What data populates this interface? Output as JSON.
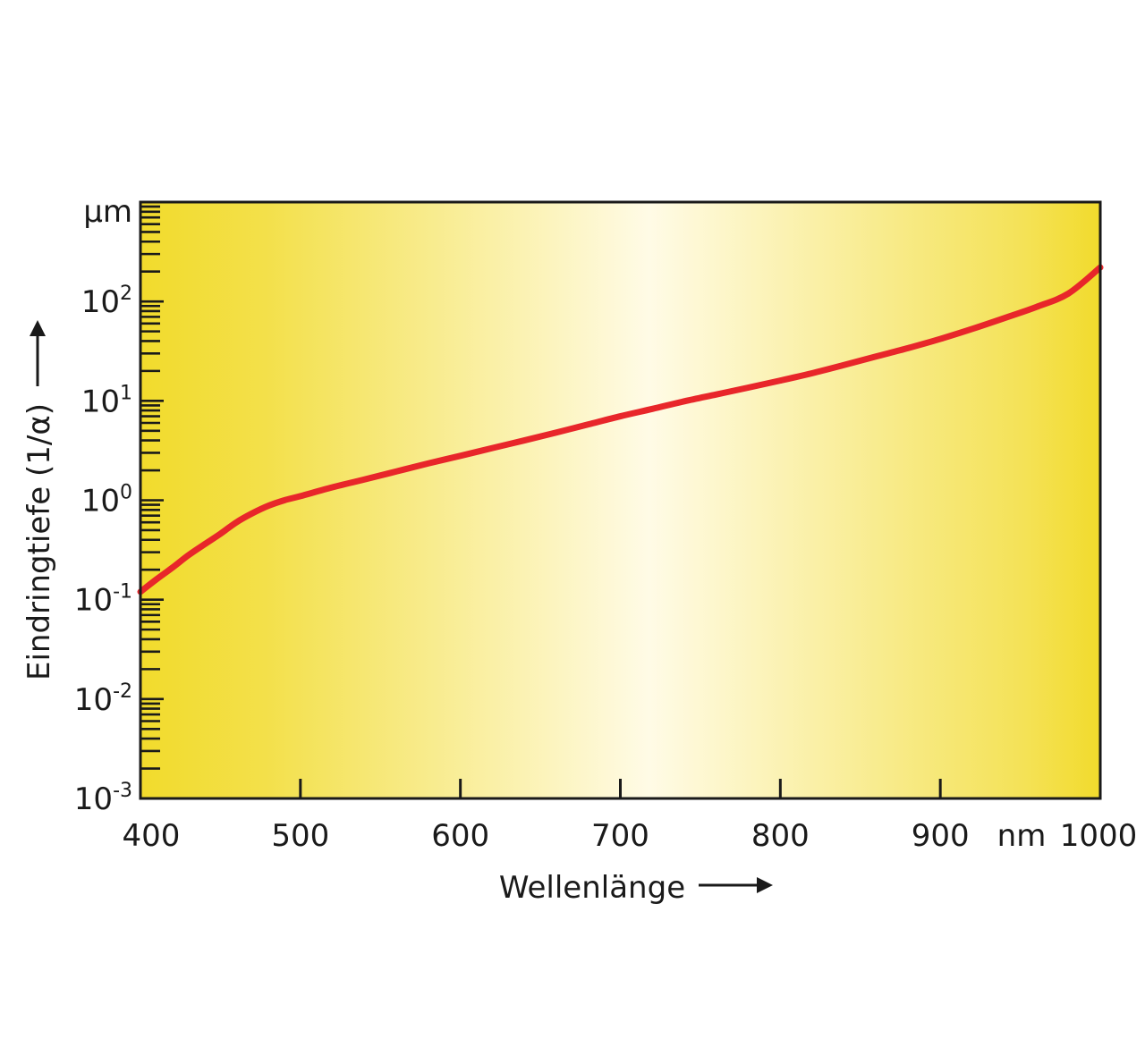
{
  "chart_data": {
    "type": "line",
    "x_label": "Wellenlänge",
    "x_unit": "nm",
    "y_label": "Eindringtiefe (1/α)",
    "y_unit": "µm",
    "y_scale": "log",
    "xlim": [
      400,
      1000
    ],
    "ylim_exponent": [
      -3,
      3
    ],
    "x_ticks": [
      "400",
      "500",
      "600",
      "700",
      "800",
      "900",
      "1000"
    ],
    "y_ticks": [
      {
        "base": "10",
        "exp": "2"
      },
      {
        "base": "10",
        "exp": "1"
      },
      {
        "base": "10",
        "exp": "0"
      },
      {
        "base": "10",
        "exp": "-1"
      },
      {
        "base": "10",
        "exp": "-2"
      },
      {
        "base": "10",
        "exp": "-3"
      }
    ],
    "grid": false,
    "background": "yellow gradient, lightest near 720 nm",
    "colors": {
      "curve": "#e8262a",
      "bg_edge": "#f2db2c",
      "bg_mid": "#fffbe6",
      "axis": "#1a1a1a"
    },
    "series": [
      {
        "x": [
          400,
          410,
          420,
          430,
          440,
          450,
          460,
          470,
          480,
          490,
          500,
          520,
          540,
          560,
          580,
          600,
          620,
          640,
          660,
          680,
          700,
          720,
          740,
          760,
          780,
          800,
          820,
          840,
          860,
          880,
          900,
          920,
          940,
          960,
          980,
          1000
        ],
        "y": [
          0.12,
          0.16,
          0.21,
          0.28,
          0.36,
          0.46,
          0.6,
          0.74,
          0.88,
          1.0,
          1.1,
          1.35,
          1.62,
          1.95,
          2.35,
          2.8,
          3.35,
          4.0,
          4.8,
          5.8,
          7.0,
          8.3,
          9.9,
          11.6,
          13.6,
          16.0,
          19.0,
          23.0,
          28.0,
          34.0,
          42.0,
          53.0,
          68.0,
          88.0,
          120.0,
          220.0
        ]
      }
    ]
  }
}
